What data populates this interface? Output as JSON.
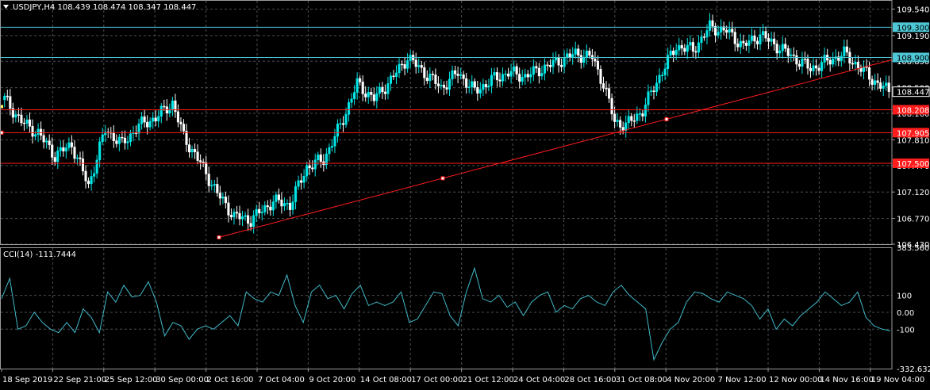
{
  "colors": {
    "background": "#000000",
    "grid": "#4a4f52",
    "axis_frame": "#9a9a9a",
    "text": "#ffffff",
    "candle_bull_fill": "#000000",
    "candle_bull_stroke": "#ffffff",
    "candle_bear_fill": "#ffffff",
    "candle_up": "#00e6e6",
    "hline_cyan": "#4ec7d6",
    "hline_red": "#ff1c1c",
    "trendline": "#ff1c1c",
    "cci_line": "#3fb9c9",
    "current_price_box": "#000000"
  },
  "header": {
    "symbol_info": "USDJPY,H4  108.439 108.474 108.347 108.447"
  },
  "cci_panel": {
    "label": "CCI(14) -111.7444"
  },
  "chart_data": [
    {
      "type": "candlestick",
      "title": "USDJPY,H4",
      "ohlc_last": {
        "open": 108.439,
        "high": 108.474,
        "low": 108.347,
        "close": 108.447
      },
      "ylim": [
        106.43,
        109.66
      ],
      "y_ticks": [
        "109.540",
        "109.190",
        "108.850",
        "108.500",
        "108.160",
        "107.810",
        "107.470",
        "107.120",
        "106.770",
        "106.430"
      ],
      "current_price": "108.447",
      "horizontal_levels": [
        {
          "value": 109.3,
          "label": "109.300",
          "color": "cyan"
        },
        {
          "value": 108.9,
          "label": "108.900",
          "color": "cyan"
        },
        {
          "value": 108.208,
          "label": "108.208",
          "color": "red"
        },
        {
          "value": 107.905,
          "label": "107.905",
          "color": "red"
        },
        {
          "value": 107.5,
          "label": "107.500",
          "color": "red"
        }
      ],
      "trendline": {
        "from": {
          "x": "2 Oct 16:00",
          "y": 106.52
        },
        "to": {
          "x": "19 Nov 04:00",
          "y": 108.87
        }
      },
      "x_ticks": [
        "18 Sep 2019",
        "22 Sep 21:00",
        "25 Sep 12:00",
        "30 Sep 00:00",
        "2 Oct 16:00",
        "7 Oct 04:00",
        "9 Oct 20:00",
        "14 Oct 08:00",
        "17 Oct 00:00",
        "21 Oct 12:00",
        "24 Oct 04:00",
        "28 Oct 16:00",
        "31 Oct 08:00",
        "4 Nov 20:00",
        "7 Nov 12:00",
        "12 Nov 00:00",
        "14 Nov 16:00",
        "19 Nov 04:00"
      ],
      "close_path_anchors": [
        [
          0,
          108.35
        ],
        [
          6,
          108.05
        ],
        [
          12,
          107.9
        ],
        [
          18,
          107.6
        ],
        [
          24,
          107.75
        ],
        [
          30,
          107.2
        ],
        [
          36,
          107.95
        ],
        [
          42,
          107.75
        ],
        [
          48,
          108.0
        ],
        [
          54,
          108.1
        ],
        [
          60,
          108.3
        ],
        [
          64,
          107.85
        ],
        [
          70,
          107.5
        ],
        [
          76,
          107.1
        ],
        [
          82,
          106.8
        ],
        [
          88,
          106.75
        ],
        [
          96,
          107.0
        ],
        [
          102,
          106.95
        ],
        [
          108,
          107.45
        ],
        [
          114,
          107.55
        ],
        [
          120,
          108.0
        ],
        [
          126,
          108.55
        ],
        [
          132,
          108.35
        ],
        [
          138,
          108.6
        ],
        [
          144,
          108.9
        ],
        [
          150,
          108.7
        ],
        [
          156,
          108.5
        ],
        [
          162,
          108.7
        ],
        [
          168,
          108.45
        ],
        [
          174,
          108.6
        ],
        [
          180,
          108.7
        ],
        [
          186,
          108.65
        ],
        [
          192,
          108.75
        ],
        [
          198,
          108.85
        ],
        [
          204,
          108.95
        ],
        [
          210,
          108.9
        ],
        [
          214,
          108.55
        ],
        [
          218,
          108.05
        ],
        [
          222,
          108.0
        ],
        [
          228,
          108.2
        ],
        [
          234,
          108.65
        ],
        [
          240,
          109.05
        ],
        [
          246,
          109.0
        ],
        [
          252,
          109.3
        ],
        [
          258,
          109.25
        ],
        [
          264,
          109.05
        ],
        [
          270,
          109.2
        ],
        [
          276,
          109.05
        ],
        [
          282,
          108.9
        ],
        [
          288,
          108.75
        ],
        [
          294,
          108.85
        ],
        [
          300,
          108.95
        ],
        [
          306,
          108.75
        ],
        [
          312,
          108.55
        ],
        [
          316,
          108.45
        ]
      ]
    },
    {
      "type": "line",
      "title": "CCI(14)",
      "current_value": -111.7444,
      "ylim": [
        -332.6328,
        383.5603
      ],
      "y_ticks": [
        "383.5603",
        "100",
        "0.00",
        "-100",
        "-332.6328"
      ],
      "levels": [
        100,
        0,
        -100
      ],
      "series": [
        {
          "values": [
            80,
            200,
            -100,
            -80,
            0,
            -60,
            -100,
            -120,
            -60,
            -120,
            20,
            -30,
            -120,
            120,
            60,
            160,
            90,
            100,
            180,
            60,
            -140,
            -60,
            -80,
            -160,
            -100,
            -80,
            -100,
            -60,
            -20,
            -80,
            120,
            80,
            60,
            120,
            100,
            220,
            40,
            -60,
            120,
            160,
            80,
            100,
            20,
            110,
            160,
            40,
            60,
            40,
            60,
            120,
            -60,
            -40,
            40,
            120,
            110,
            -20,
            -80,
            120,
            260,
            80,
            60,
            100,
            30,
            60,
            -20,
            60,
            100,
            120,
            0,
            40,
            20,
            80,
            100,
            60,
            40,
            120,
            160,
            100,
            60,
            20,
            -280,
            -180,
            -100,
            -60,
            60,
            120,
            110,
            80,
            60,
            120,
            100,
            80,
            40,
            -40,
            20,
            -100,
            -40,
            -80,
            -20,
            20,
            60,
            120,
            80,
            40,
            60,
            120,
            -30,
            -80,
            -100,
            -110
          ]
        }
      ]
    }
  ]
}
